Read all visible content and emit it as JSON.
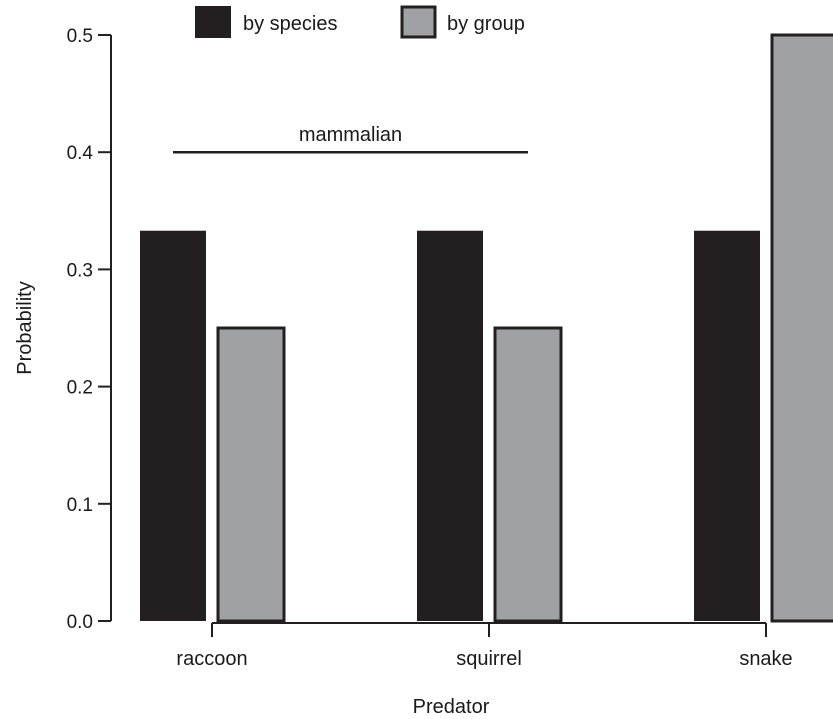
{
  "chart_data": {
    "type": "bar",
    "title": "",
    "xlabel": "Predator",
    "ylabel": "Probability",
    "categories": [
      "raccoon",
      "squirrel",
      "snake"
    ],
    "series": [
      {
        "name": "by species",
        "values": [
          0.333,
          0.333,
          0.333
        ],
        "color": "#231f20"
      },
      {
        "name": "by group",
        "values": [
          0.25,
          0.25,
          0.5
        ],
        "color": "#a0a1a4"
      }
    ],
    "ylim": [
      0,
      0.5
    ],
    "yticks": [
      0.0,
      0.1,
      0.2,
      0.3,
      0.4,
      0.5
    ],
    "ytick_labels": [
      "0.0",
      "0.1",
      "0.2",
      "0.3",
      "0.4",
      "0.5"
    ],
    "grid": false,
    "legend": {
      "placement": "top",
      "entries": [
        "by species",
        "by group"
      ]
    },
    "annotations": [
      {
        "text": "mammalian",
        "spans": [
          "raccoon",
          "squirrel"
        ],
        "y": 0.4
      }
    ]
  }
}
